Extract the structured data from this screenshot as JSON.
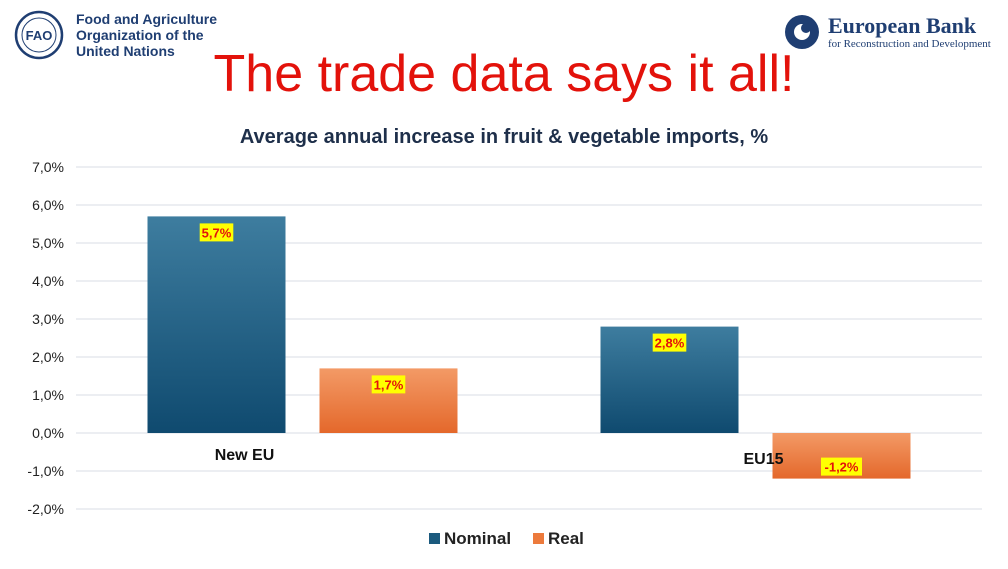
{
  "header": {
    "fao_name": "Food and Agriculture\nOrganization of the\nUnited Nations",
    "fao_emblem_text": "FAO",
    "ebrd_name": "European Bank",
    "ebrd_subtitle": "for Reconstruction and Development",
    "headline": "The trade data says it all!"
  },
  "colors": {
    "nominal": "#1b5a7e",
    "real": "#ec7a3c",
    "headline": "#e3120b",
    "label_bg": "#ffff00",
    "label_text": "#e3120b"
  },
  "chart_data": {
    "type": "bar",
    "title": "Average annual increase in fruit & vegetable imports, %",
    "categories": [
      "New EU",
      "EU15"
    ],
    "series": [
      {
        "name": "Nominal",
        "values": [
          5.7,
          2.8
        ],
        "labels": [
          "5,7%",
          "2,8%"
        ]
      },
      {
        "name": "Real",
        "values": [
          1.7,
          -1.2
        ],
        "labels": [
          "1,7%",
          "-1,2%"
        ]
      }
    ],
    "ylim": [
      -2.0,
      7.0
    ],
    "yticks": [
      "-2,0%",
      "-1,0%",
      "0,0%",
      "1,0%",
      "2,0%",
      "3,0%",
      "4,0%",
      "5,0%",
      "6,0%",
      "7,0%"
    ],
    "xlabel": "",
    "ylabel": "",
    "grid": true,
    "legend": "bottom-center"
  }
}
